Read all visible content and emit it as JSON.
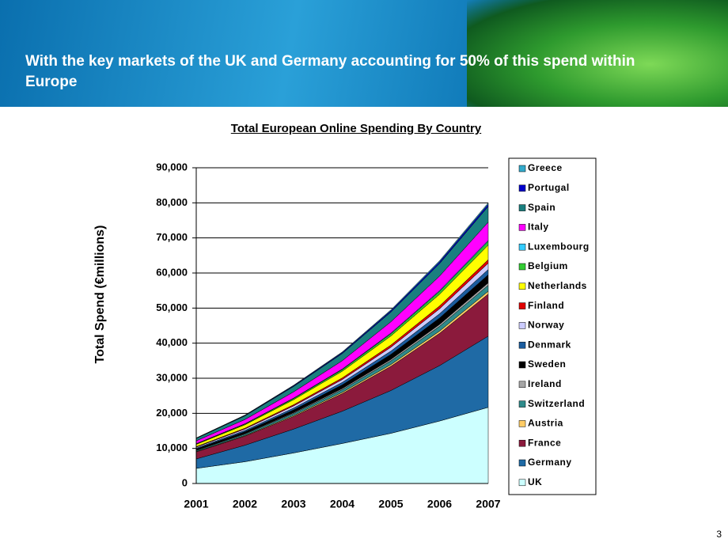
{
  "slide": {
    "headline": "With the key markets of the UK and Germany accounting for 50% of this spend within Europe",
    "page_number": "3"
  },
  "chart_data": {
    "type": "stacked_area",
    "title": "Total European Online Spending By Country",
    "y_label": "Total Spend (€millions)",
    "categories": [
      "2001",
      "2002",
      "2003",
      "2004",
      "2005",
      "2006",
      "2007"
    ],
    "ylim": [
      0,
      90000
    ],
    "yticks": [
      0,
      {
        "value": 10000,
        "label": "10,000"
      },
      {
        "value": 20000,
        "label": "20,000"
      },
      {
        "value": 30000,
        "label": "30,000"
      },
      {
        "value": 40000,
        "label": "40,000"
      },
      {
        "value": 50000,
        "label": "50,000"
      },
      {
        "value": 60000,
        "label": "60,000"
      },
      {
        "value": 70000,
        "label": "70,000"
      },
      {
        "value": 80000,
        "label": "80,000"
      },
      {
        "value": 90000,
        "label": "90,000"
      }
    ],
    "grid": true,
    "series": [
      {
        "name": "UK",
        "color": "#ccffff",
        "values": [
          4300,
          6200,
          8700,
          11400,
          14300,
          17800,
          21700
        ]
      },
      {
        "name": "Germany",
        "color": "#1f6aa5",
        "values": [
          2700,
          4700,
          6800,
          9200,
          12200,
          15800,
          20300
        ]
      },
      {
        "name": "France",
        "color": "#8b1a3c",
        "values": [
          2000,
          2600,
          3600,
          5000,
          6900,
          9200,
          12000
        ]
      },
      {
        "name": "Austria",
        "color": "#ffcc66",
        "values": [
          120,
          180,
          270,
          370,
          500,
          640,
          800
        ]
      },
      {
        "name": "Switzerland",
        "color": "#2e8b8b",
        "values": [
          260,
          390,
          580,
          780,
          1050,
          1350,
          1700
        ]
      },
      {
        "name": "Ireland",
        "color": "#a6a6a6",
        "values": [
          110,
          160,
          240,
          320,
          430,
          560,
          700
        ]
      },
      {
        "name": "Sweden",
        "color": "#000000",
        "values": [
          350,
          530,
          790,
          1050,
          1420,
          1830,
          2300
        ]
      },
      {
        "name": "Denmark",
        "color": "#1a5c9e",
        "values": [
          230,
          350,
          510,
          690,
          930,
          1190,
          1500
        ]
      },
      {
        "name": "Norway",
        "color": "#ccccff",
        "values": [
          280,
          420,
          620,
          820,
          1110,
          1430,
          1800
        ]
      },
      {
        "name": "Finland",
        "color": "#e00000",
        "values": [
          150,
          230,
          340,
          460,
          620,
          800,
          1000
        ]
      },
      {
        "name": "Netherlands",
        "color": "#ffff00",
        "values": [
          650,
          970,
          1440,
          1920,
          2600,
          3340,
          4200
        ]
      },
      {
        "name": "Belgium",
        "color": "#33cc33",
        "values": [
          150,
          230,
          340,
          460,
          620,
          800,
          1000
        ]
      },
      {
        "name": "Luxembourg",
        "color": "#33ccff",
        "values": [
          50,
          70,
          100,
          140,
          190,
          240,
          300
        ]
      },
      {
        "name": "Italy",
        "color": "#ff00ff",
        "values": [
          800,
          1200,
          1780,
          2380,
          3220,
          4140,
          5200
        ]
      },
      {
        "name": "Spain",
        "color": "#1a7f7f",
        "values": [
          690,
          1040,
          1540,
          2060,
          2790,
          3580,
          4500
        ]
      },
      {
        "name": "Portugal",
        "color": "#0000cc",
        "values": [
          90,
          140,
          210,
          270,
          370,
          480,
          600
        ]
      },
      {
        "name": "Greece",
        "color": "#33aacc",
        "values": [
          60,
          90,
          140,
          180,
          250,
          320,
          400
        ]
      }
    ]
  }
}
